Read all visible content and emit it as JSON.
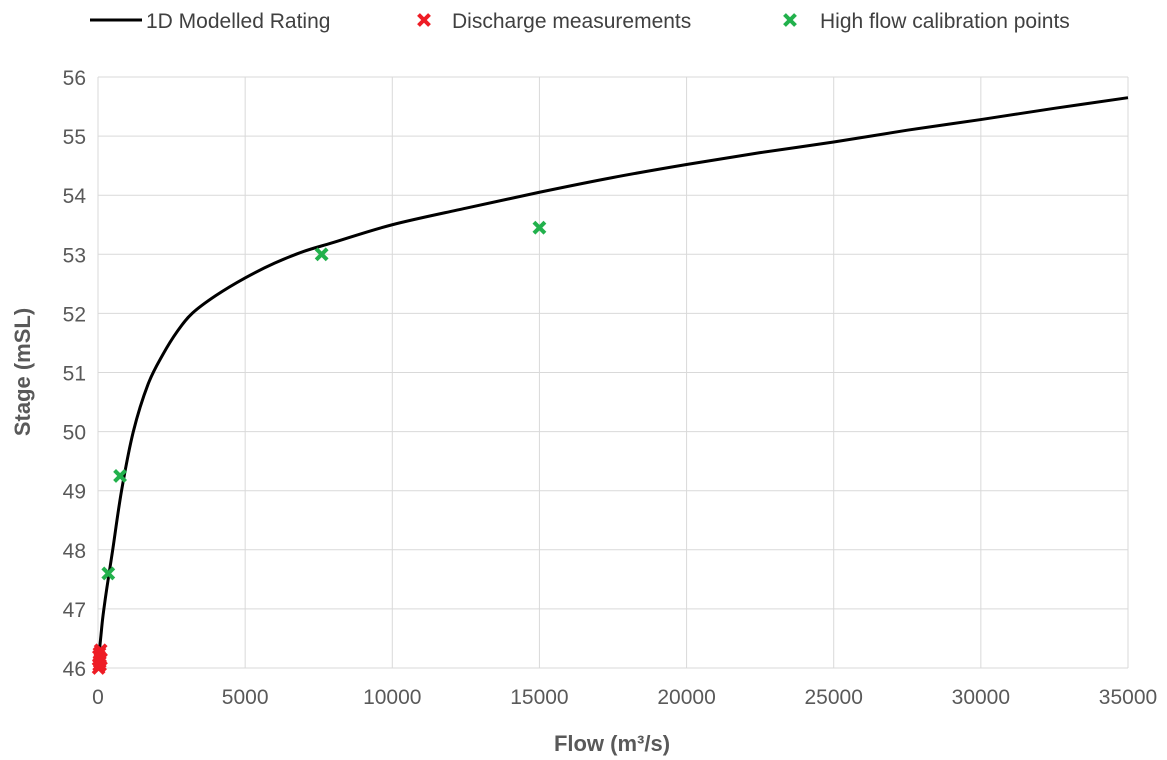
{
  "chart_data": {
    "type": "scatter",
    "title": "",
    "xlabel": "Flow (m³/s)",
    "ylabel": "Stage (mSL)",
    "xlim": [
      0,
      35000
    ],
    "ylim": [
      46,
      56
    ],
    "x_ticks": [
      0,
      5000,
      10000,
      15000,
      20000,
      25000,
      30000,
      35000
    ],
    "y_ticks": [
      46,
      47,
      48,
      49,
      50,
      51,
      52,
      53,
      54,
      55,
      56
    ],
    "grid": true,
    "legend_position": "top",
    "series": [
      {
        "name": "1D Modelled Rating",
        "kind": "line",
        "color": "#000000",
        "x": [
          0,
          50,
          100,
          150,
          200,
          300,
          500,
          800,
          1200,
          1700,
          2200,
          2700,
          3200,
          4000,
          5000,
          6000,
          7000,
          8000,
          10000,
          12500,
          15000,
          17500,
          20000,
          22500,
          25000,
          27500,
          30000,
          32500,
          35000
        ],
        "y": [
          46.0,
          46.3,
          46.55,
          46.8,
          47.0,
          47.35,
          48.0,
          49.0,
          50.0,
          50.8,
          51.3,
          51.7,
          52.0,
          52.3,
          52.6,
          52.85,
          53.05,
          53.2,
          53.5,
          53.78,
          54.05,
          54.3,
          54.52,
          54.72,
          54.9,
          55.1,
          55.28,
          55.47,
          55.65
        ]
      },
      {
        "name": "Discharge measurements",
        "kind": "marker",
        "marker": "x",
        "color": "#ee1c25",
        "x": [
          20,
          40,
          60,
          80,
          30,
          50,
          70,
          90,
          100
        ],
        "y": [
          46.0,
          46.05,
          46.1,
          46.15,
          46.2,
          46.25,
          46.05,
          46.3,
          46.15
        ]
      },
      {
        "name": "High flow calibration points",
        "kind": "marker",
        "marker": "x",
        "color": "#22b14c",
        "x": [
          350,
          750,
          7600,
          15000
        ],
        "y": [
          47.6,
          49.25,
          53.0,
          53.45
        ]
      }
    ]
  }
}
